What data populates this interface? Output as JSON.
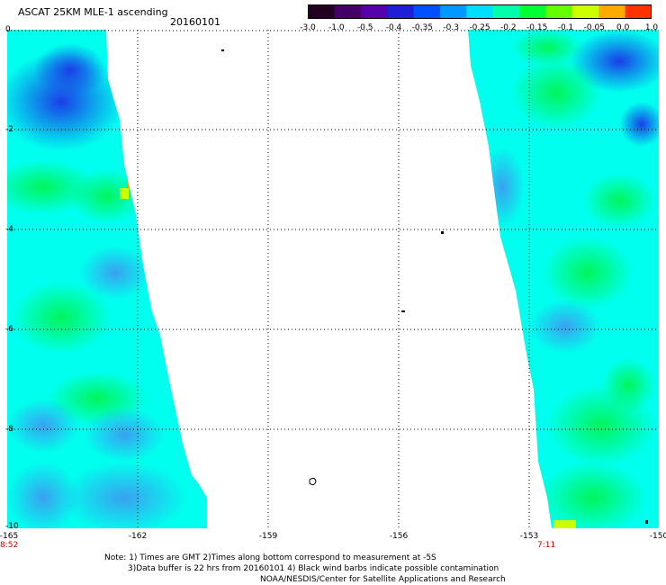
{
  "header": {
    "title": "ASCAT 25KM MLE-1 ascending",
    "date": "20160101"
  },
  "colorbar": {
    "labels": [
      "-3.0",
      "-1.0",
      "-0.5",
      "-0.4",
      "-0.35",
      "-0.3",
      "-0.25",
      "-0.2",
      "-0.15",
      "-0.1",
      "-0.05",
      "0.0",
      "1.0"
    ],
    "colors": [
      "#220022",
      "#440066",
      "#5500aa",
      "#1f1fd6",
      "#0050ff",
      "#0099ff",
      "#00ddff",
      "#00ffaa",
      "#00ff33",
      "#66ff00",
      "#ccff00",
      "#ffaa00",
      "#ff3300"
    ]
  },
  "map": {
    "y_ticks": [
      "0",
      "-2",
      "-4",
      "-6",
      "-8",
      "-10"
    ],
    "x_ticks": [
      "-165",
      "-162",
      "-159",
      "-156",
      "-153",
      "-150"
    ],
    "start_time": "8:52",
    "end_time": "7:11"
  },
  "footer": {
    "line1": "Note: 1) Times are GMT 2)Times along bottom correspond to measurement at -5S",
    "line2": "3)Data buffer is 22 hrs from 20160101 4) Black wind barbs indicate possible contamination",
    "line3": "NOAA/NESDIS/Center for Satellite Applications and Research"
  }
}
